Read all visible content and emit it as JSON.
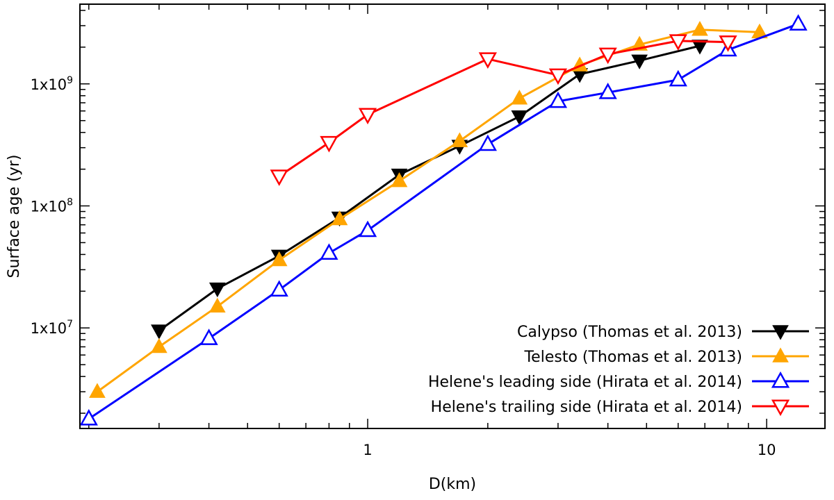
{
  "chart_data": {
    "type": "line",
    "title": "",
    "xlabel": "D(km)",
    "ylabel": "Surface age (yr)",
    "xscale": "log",
    "yscale": "log",
    "xlim": [
      0.19,
      14
    ],
    "ylim": [
      1500000,
      4500000000
    ],
    "xticks": [
      {
        "value": 1,
        "label": "1"
      },
      {
        "value": 10,
        "label": "10"
      }
    ],
    "yticks": [
      {
        "value": 10000000,
        "label": "1x10^7"
      },
      {
        "value": 100000000,
        "label": "1x10^8"
      },
      {
        "value": 1000000000,
        "label": "1x10^9"
      }
    ],
    "grid": false,
    "legend_position": "bottom-right",
    "series": [
      {
        "name": "Calypso (Thomas et al. 2013)",
        "color": "#000000",
        "marker": "triangle-down-filled",
        "x": [
          0.3,
          0.42,
          0.6,
          0.85,
          1.2,
          1.7,
          2.4,
          3.4,
          4.8,
          6.8
        ],
        "y": [
          9500000,
          21000000,
          39000000,
          80000000,
          180000000,
          310000000,
          540000000,
          1200000000,
          1550000000,
          2050000000
        ]
      },
      {
        "name": "Telesto (Thomas et al. 2013)",
        "color": "#FFA500",
        "marker": "triangle-up-filled",
        "x": [
          0.21,
          0.3,
          0.42,
          0.6,
          0.85,
          1.2,
          1.7,
          2.4,
          3.4,
          4.8,
          6.8,
          9.6
        ],
        "y": [
          3000000,
          7000000,
          15000000,
          36000000,
          78000000,
          160000000,
          340000000,
          760000000,
          1420000000,
          2100000000,
          2780000000,
          2650000000
        ]
      },
      {
        "name": "Helene's leading side (Hirata et al. 2014)",
        "color": "#0000FF",
        "marker": "triangle-up-open",
        "x": [
          0.2,
          0.4,
          0.6,
          0.8,
          1.0,
          2.0,
          3.0,
          4.0,
          6.0,
          8.0,
          12.0
        ],
        "y": [
          1800000,
          8200000,
          20500000,
          41000000,
          63000000,
          320000000,
          720000000,
          850000000,
          1080000000,
          1900000000,
          3100000000
        ]
      },
      {
        "name": "Helene's trailing side (Hirata et al. 2014)",
        "color": "#FF0000",
        "marker": "triangle-down-open",
        "x": [
          0.6,
          0.8,
          1.0,
          2.0,
          3.0,
          4.0,
          6.0,
          8.0
        ],
        "y": [
          175000000,
          330000000,
          560000000,
          1600000000,
          1180000000,
          1750000000,
          2250000000,
          2200000000
        ]
      }
    ]
  }
}
